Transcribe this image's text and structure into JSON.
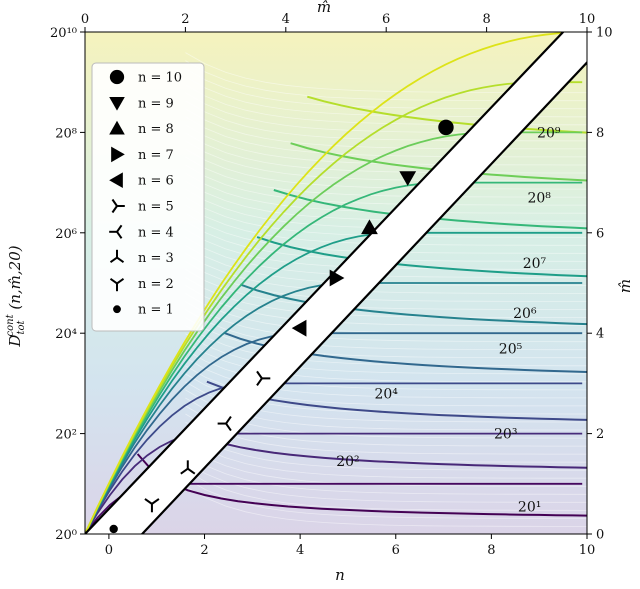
{
  "chart_data": {
    "type": "line",
    "title": "",
    "axes": {
      "bottom": {
        "label": "n",
        "ticks": [
          "0",
          "2",
          "4",
          "6",
          "8",
          "10"
        ],
        "range": [
          -0.5,
          10
        ]
      },
      "top": {
        "label": "m̂",
        "ticks": [
          "0",
          "2",
          "4",
          "6",
          "8",
          "10"
        ],
        "range": [
          0,
          10
        ]
      },
      "left": {
        "label_parts": [
          "D",
          "tot",
          "cont",
          " (n,m̂,20)"
        ],
        "ticks": [
          "20⁰",
          "20²",
          "20⁴",
          "20⁶",
          "20⁸",
          "20¹⁰"
        ],
        "exponents": [
          0,
          2,
          4,
          6,
          8,
          10
        ],
        "scale": "log base 20",
        "range": [
          0,
          10
        ]
      },
      "right": {
        "label": "m̂",
        "ticks": [
          "0",
          "2",
          "4",
          "6",
          "8",
          "10"
        ],
        "range": [
          0,
          10
        ]
      }
    },
    "grid": false,
    "legend": {
      "position": "top-left",
      "entries": [
        {
          "label": "n = 10",
          "marker": "circle-large"
        },
        {
          "label": "n = 9",
          "marker": "triangle-down"
        },
        {
          "label": "n = 8",
          "marker": "triangle-up"
        },
        {
          "label": "n = 7",
          "marker": "triangle-right"
        },
        {
          "label": "n = 6",
          "marker": "triangle-left"
        },
        {
          "label": "n = 5",
          "marker": "tri-right"
        },
        {
          "label": "n = 4",
          "marker": "tri-left"
        },
        {
          "label": "n = 3",
          "marker": "tri-up"
        },
        {
          "label": "n = 2",
          "marker": "tri-down"
        },
        {
          "label": "n = 1",
          "marker": "circle-small"
        }
      ]
    },
    "curves": [
      {
        "n": 1,
        "color": "#46095f",
        "marker_point": [
          0.1,
          0.1
        ]
      },
      {
        "n": 2,
        "color": "#472c7a",
        "marker_point": [
          0.9,
          0.6
        ]
      },
      {
        "n": 3,
        "color": "#3d4a8a",
        "marker_point": [
          1.65,
          1.3
        ]
      },
      {
        "n": 4,
        "color": "#31688e",
        "marker_point": [
          2.45,
          2.2
        ]
      },
      {
        "n": 5,
        "color": "#26828e",
        "marker_point": [
          3.2,
          3.1
        ]
      },
      {
        "n": 6,
        "color": "#1f9e89",
        "marker_point": [
          4.0,
          4.1
        ]
      },
      {
        "n": 7,
        "color": "#35b779",
        "marker_point": [
          4.75,
          5.1
        ]
      },
      {
        "n": 8,
        "color": "#6ccd5a",
        "marker_point": [
          5.45,
          6.1
        ]
      },
      {
        "n": 9,
        "color": "#b5de2b",
        "marker_point": [
          6.25,
          7.1
        ]
      },
      {
        "n": 10,
        "color": "#dde318",
        "marker_point": [
          7.05,
          8.1
        ]
      }
    ],
    "contours": [
      {
        "label": "20¹",
        "exponent": 1,
        "color": "#440154",
        "label_at": [
          8.8,
          0.45
        ]
      },
      {
        "label": "20²",
        "exponent": 2,
        "color": "#482878",
        "label_at": [
          5.0,
          1.35
        ]
      },
      {
        "label": "20³",
        "exponent": 3,
        "color": "#3e4989",
        "label_at": [
          8.3,
          1.9
        ]
      },
      {
        "label": "20⁴",
        "exponent": 4,
        "color": "#31688e",
        "label_at": [
          5.8,
          2.7
        ]
      },
      {
        "label": "20⁵",
        "exponent": 5,
        "color": "#26828e",
        "label_at": [
          8.4,
          3.6
        ]
      },
      {
        "label": "20⁶",
        "exponent": 6,
        "color": "#1f9e89",
        "label_at": [
          8.7,
          4.3
        ]
      },
      {
        "label": "20⁷",
        "exponent": 7,
        "color": "#35b779",
        "label_at": [
          8.9,
          5.3
        ]
      },
      {
        "label": "20⁸",
        "exponent": 8,
        "color": "#6ece58",
        "label_at": [
          9.0,
          6.6
        ]
      },
      {
        "label": "20⁹",
        "exponent": 9,
        "color": "#b5de2b",
        "label_at": [
          9.2,
          7.9
        ]
      }
    ],
    "colormap": "viridis"
  }
}
